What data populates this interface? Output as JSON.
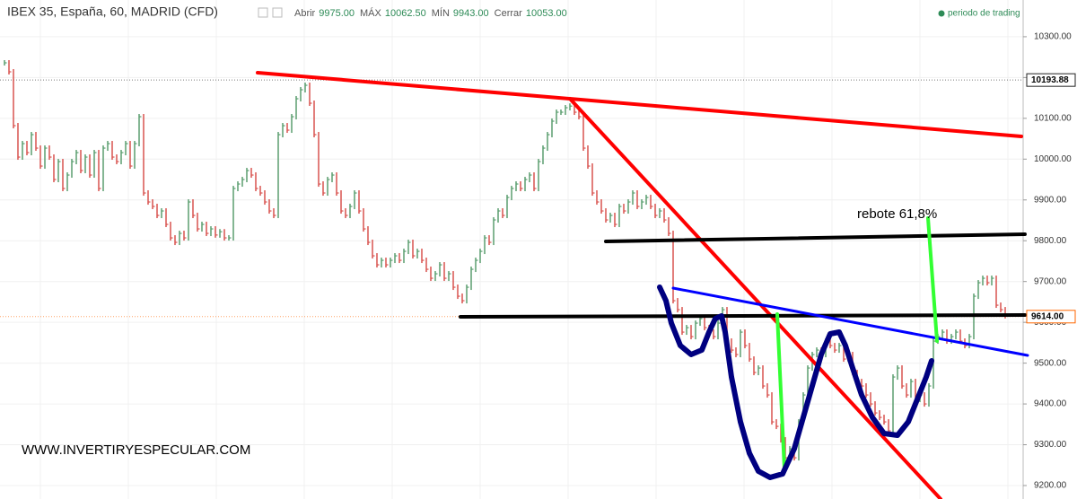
{
  "chart_data": {
    "type": "price-bars",
    "title": "IBEX 35, España, 60, MADRID (CFD)",
    "ohlc_header": [
      {
        "label": "Abrir",
        "value": "9975.00"
      },
      {
        "label": "MÁX",
        "value": "10062.50"
      },
      {
        "label": "MÍN",
        "value": "9943.00"
      },
      {
        "label": "Cerrar",
        "value": "10053.00"
      }
    ],
    "legend": "periodo de trading",
    "annotations": [
      "rebote 61,8%",
      "WWW.INVERTIRYESPECULAR.COM"
    ],
    "up_color": "#5a9e6f",
    "down_color": "#d9534f",
    "ylim": [
      9167,
      10390
    ],
    "yticks": [
      {
        "value": 10300,
        "label": "10300.00"
      },
      {
        "value": 10200,
        "label": "10200.00"
      },
      {
        "value": 10100,
        "label": "10100.00"
      },
      {
        "value": 10000,
        "label": "10000.00"
      },
      {
        "value": 9900,
        "label": "9900.00"
      },
      {
        "value": 9800,
        "label": "9800.00"
      },
      {
        "value": 9700,
        "label": "9700.00"
      },
      {
        "value": 9600,
        "label": "9600.00"
      },
      {
        "value": 9500,
        "label": "9500.00"
      },
      {
        "value": 9400,
        "label": "9400.00"
      },
      {
        "value": 9300,
        "label": "9300.00"
      },
      {
        "value": 9200,
        "label": "9200.00"
      }
    ],
    "price_markers": [
      {
        "value": 10193.88,
        "label": "10193.88",
        "color": "#222222"
      },
      {
        "value": 9614,
        "label": "9614.00",
        "color": "#ff6600"
      }
    ],
    "values": [
      10236,
      10214,
      10082,
      10005,
      10038,
      10016,
      10060,
      10027,
      9983,
      10027,
      10005,
      9950,
      9994,
      9928,
      9961,
      9994,
      10016,
      9972,
      10005,
      9961,
      10016,
      9928,
      10027,
      10038,
      10005,
      9994,
      10016,
      10038,
      9983,
      10038,
      10104,
      9917,
      9895,
      9884,
      9862,
      9873,
      9840,
      9807,
      9796,
      9818,
      9807,
      9895,
      9862,
      9829,
      9840,
      9818,
      9829,
      9814,
      9822,
      9807,
      9807,
      9928,
      9939,
      9950,
      9972,
      9961,
      9928,
      9917,
      9895,
      9873,
      9862,
      10060,
      10082,
      10071,
      10104,
      10148,
      10170,
      10181,
      10137,
      10060,
      9939,
      9917,
      9950,
      9961,
      9917,
      9873,
      9862,
      9884,
      9917,
      9873,
      9829,
      9796,
      9763,
      9741,
      9752,
      9741,
      9752,
      9763,
      9752,
      9774,
      9796,
      9763,
      9774,
      9752,
      9730,
      9708,
      9719,
      9741,
      9708,
      9719,
      9686,
      9664,
      9653,
      9686,
      9730,
      9752,
      9774,
      9807,
      9796,
      9851,
      9873,
      9862,
      9906,
      9928,
      9939,
      9928,
      9950,
      9961,
      9928,
      9994,
      10027,
      10060,
      10093,
      10115,
      10115,
      10126,
      10130,
      10115,
      10104,
      10027,
      9983,
      9917,
      9895,
      9873,
      9851,
      9862,
      9840,
      9884,
      9873,
      9895,
      9917,
      9884,
      9895,
      9906,
      9884,
      9862,
      9873,
      9851,
      9818,
      9653,
      9631,
      9576,
      9587,
      9565,
      9598,
      9609,
      9587,
      9576,
      9565,
      9598,
      9631,
      9554,
      9532,
      9521,
      9576,
      9543,
      9510,
      9477,
      9488,
      9444,
      9422,
      9356,
      9345,
      9312,
      9268,
      9290,
      9268,
      9356,
      9422,
      9488,
      9521,
      9532,
      9521,
      9554,
      9543,
      9532,
      9543,
      9510,
      9521,
      9477,
      9455,
      9444,
      9422,
      9400,
      9378,
      9367,
      9356,
      9334,
      9466,
      9488,
      9444,
      9422,
      9455,
      9411,
      9422,
      9400,
      9444,
      9554,
      9565,
      9576,
      9554,
      9565,
      9576,
      9554,
      9543,
      9565,
      9664,
      9697,
      9708,
      9697,
      9708,
      9642,
      9631,
      9616
    ],
    "grid": true
  }
}
